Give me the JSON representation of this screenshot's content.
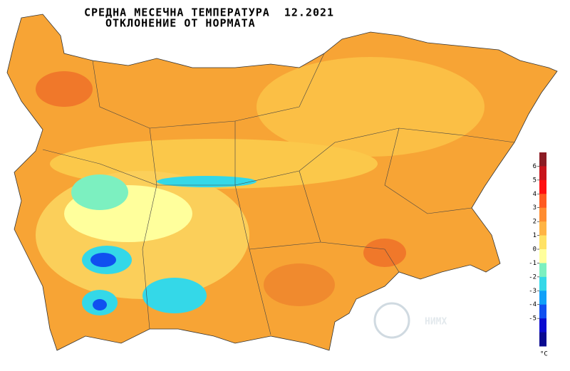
{
  "title": {
    "line1": "СРЕДНА МЕСЕЧНА ТЕМПЕРАТУРА  12.2021",
    "line2": "ОТКЛОНЕНИЕ ОТ НОРМАТА"
  },
  "legend": {
    "unit": "°C",
    "ticks": [
      6,
      5,
      4,
      3,
      2,
      1,
      0,
      -1,
      -2,
      -3,
      -4,
      -5
    ],
    "colors": [
      "#8b1c24",
      "#c8141c",
      "#ff1010",
      "#ff5a20",
      "#ff8c30",
      "#ffb444",
      "#ffe264",
      "#ffff9c",
      "#7cf0c0",
      "#34d8e8",
      "#10a0f8",
      "#1050f0",
      "#0a0ad0",
      "#0a0a90"
    ]
  },
  "logo": {
    "text": "НИМХ"
  }
}
